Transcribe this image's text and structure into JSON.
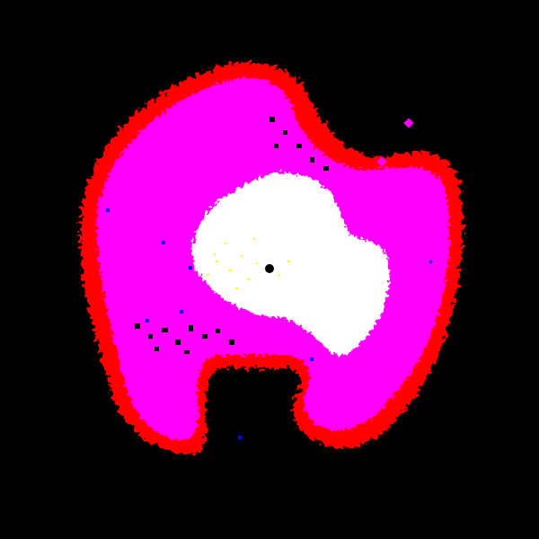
{
  "colors": {
    "background": "#000000",
    "outer_band": "#ff0000",
    "mid_band": "#ff00ff",
    "core": "#ffffff",
    "inner_speckle": "#ffff00",
    "sparse_speckle": "#0000ff",
    "center_marker": "#000000"
  },
  "markers": [
    {
      "name": "diamond-marker",
      "color": "#ff00ff"
    },
    {
      "name": "diamond-marker",
      "color": "#ff00ff"
    }
  ]
}
